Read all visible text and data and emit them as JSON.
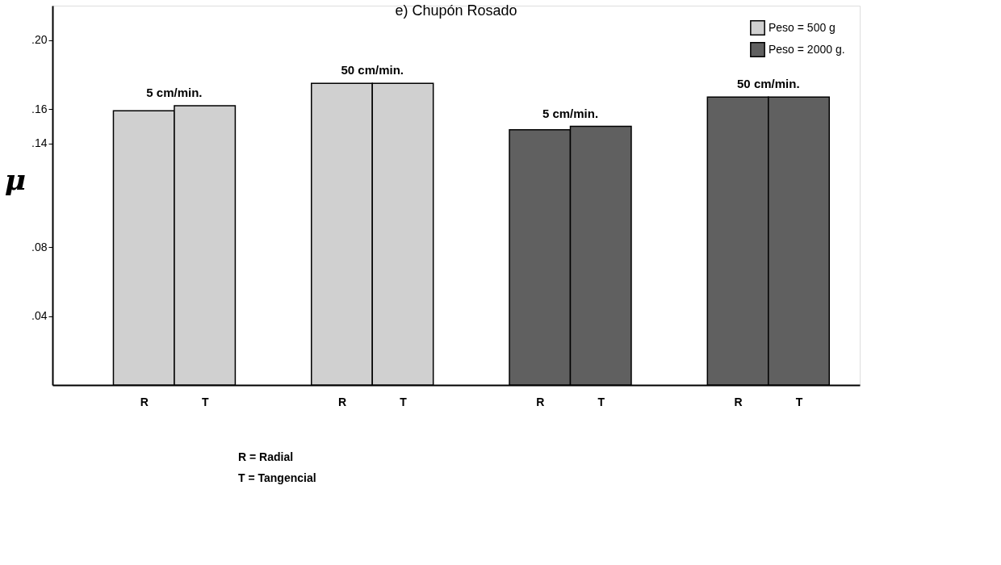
{
  "chart_data": {
    "type": "bar",
    "title": "e) Chupón Rosado",
    "ylabel": "μ",
    "categories": [
      "R",
      "T",
      "R",
      "T",
      "R",
      "T",
      "R",
      "T"
    ],
    "series": [
      {
        "name": "Peso = 500 g",
        "color": "#d0d0d0",
        "values": [
          0.159,
          0.162,
          0.175,
          0.175,
          null,
          null,
          null,
          null
        ]
      },
      {
        "name": "Peso = 2000 g.",
        "color": "#606060",
        "values": [
          null,
          null,
          null,
          null,
          0.148,
          0.15,
          0.167,
          0.167
        ]
      }
    ],
    "annotations": [
      "5 cm/min.",
      "50 cm/min.",
      "5 cm/min.",
      "50 cm/min.",
      "R = Radial",
      "T = Tangencial"
    ],
    "ylim": [
      0,
      0.22
    ],
    "yticks": [
      {
        "value": 0.04,
        "label": ".04"
      },
      {
        "value": 0.08,
        "label": ".08"
      },
      {
        "value": 0.14,
        "label": ".14"
      },
      {
        "value": 0.16,
        "label": ".16"
      },
      {
        "value": 0.2,
        "label": ".20"
      }
    ],
    "grid": false,
    "legend": "top right"
  }
}
